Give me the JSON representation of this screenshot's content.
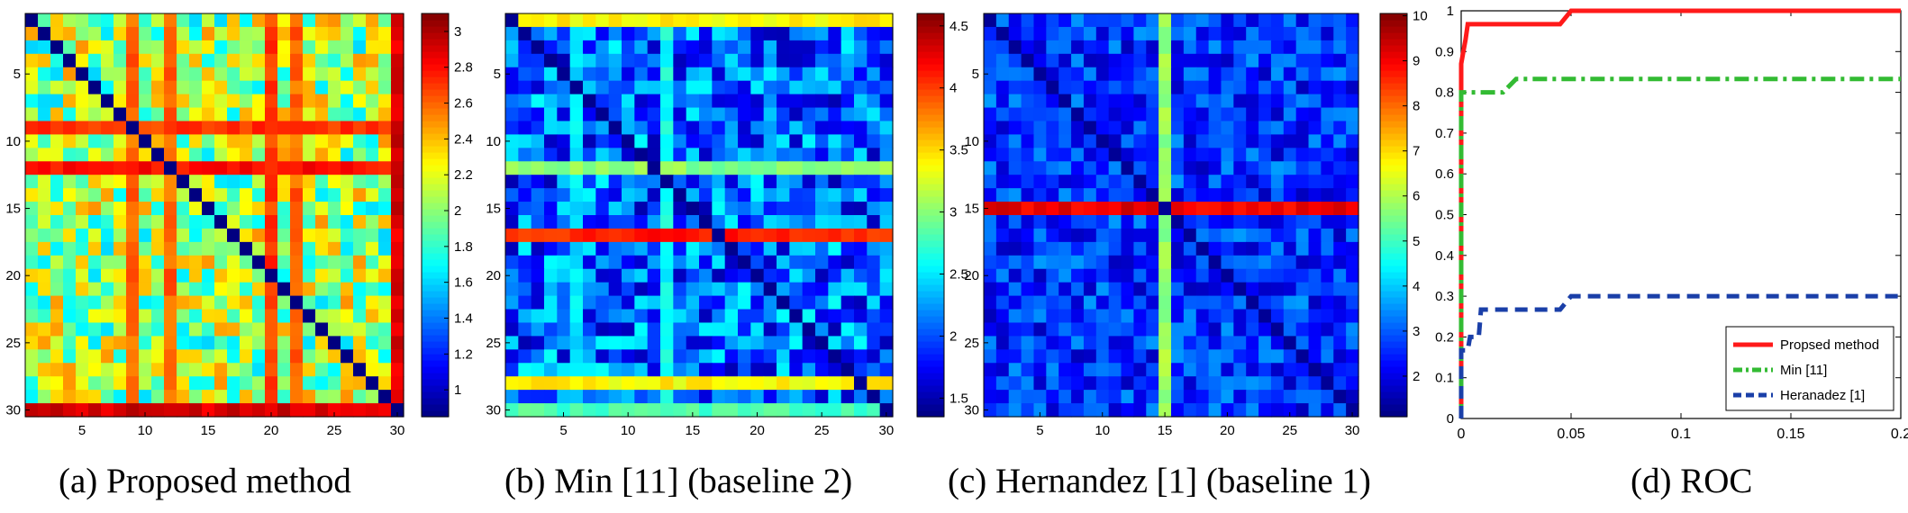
{
  "chart_data": [
    {
      "type": "heatmap",
      "caption": "(a) Proposed method",
      "size": 30,
      "xticks": [
        5,
        10,
        15,
        20,
        25,
        30
      ],
      "yticks": [
        5,
        10,
        15,
        20,
        25,
        30
      ],
      "colorbar": {
        "min": 0.85,
        "max": 3.1,
        "ticks": [
          "1",
          "1.2",
          "1.4",
          "1.6",
          "1.8",
          "2",
          "2.2",
          "2.4",
          "2.6",
          "2.8",
          "3"
        ]
      },
      "diagonal": 0.85,
      "hot_rows": [
        {
          "index": 9,
          "value": 2.7
        },
        {
          "index": 12,
          "value": 2.8
        },
        {
          "index": 30,
          "value": 2.9
        }
      ],
      "hot_cols": [
        {
          "index": 9,
          "value": 2.6
        },
        {
          "index": 12,
          "value": 2.6
        },
        {
          "index": 20,
          "value": 2.7
        },
        {
          "index": 22,
          "value": 2.6
        },
        {
          "index": 30,
          "value": 2.9
        }
      ],
      "background": {
        "min": 1.6,
        "max": 2.5
      }
    },
    {
      "type": "heatmap",
      "caption": "(b) Min [11] (baseline 2)",
      "size": 30,
      "xticks": [
        5,
        10,
        15,
        20,
        25,
        30
      ],
      "yticks": [
        5,
        10,
        15,
        20,
        25,
        30
      ],
      "colorbar": {
        "min": 1.35,
        "max": 4.6,
        "ticks": [
          "1.5",
          "2",
          "2.5",
          "3",
          "3.5",
          "4",
          "4.5"
        ]
      },
      "diagonal": 1.4,
      "hot_rows": [
        {
          "index": 1,
          "value": 3.4
        },
        {
          "index": 12,
          "value": 3.0
        },
        {
          "index": 17,
          "value": 4.1
        },
        {
          "index": 28,
          "value": 3.4
        },
        {
          "index": 30,
          "value": 2.8
        }
      ],
      "hot_cols": [
        {
          "index": 6,
          "value": 2.5
        },
        {
          "index": 13,
          "value": 2.6
        }
      ],
      "background": {
        "min": 1.5,
        "max": 2.6
      }
    },
    {
      "type": "heatmap",
      "caption": "(c) Hernandez [1] (baseline 1)",
      "size": 30,
      "xticks": [
        5,
        10,
        15,
        20,
        25,
        30
      ],
      "yticks": [
        5,
        10,
        15,
        20,
        25,
        30
      ],
      "colorbar": {
        "min": 1.1,
        "max": 10.05,
        "ticks": [
          "2",
          "3",
          "4",
          "5",
          "6",
          "7",
          "8",
          "9",
          "10"
        ]
      },
      "diagonal": 1.3,
      "hot_rows": [
        {
          "index": 15,
          "value": 9.1
        }
      ],
      "hot_cols": [
        {
          "index": 15,
          "value": 5.8
        }
      ],
      "background": {
        "min": 1.6,
        "max": 3.6
      }
    },
    {
      "type": "line",
      "caption": "(d) ROC",
      "xlim": [
        0,
        0.2
      ],
      "ylim": [
        0,
        1
      ],
      "xticks": [
        "0",
        "0.05",
        "0.1",
        "0.15",
        "0.2"
      ],
      "yticks": [
        "0",
        "0.1",
        "0.2",
        "0.3",
        "0.4",
        "0.5",
        "0.6",
        "0.7",
        "0.8",
        "0.9",
        "1"
      ],
      "legend_position": "bottom-right",
      "series": [
        {
          "name": "Propsed method",
          "color": "#ff1a1a",
          "style": "solid",
          "points": [
            [
              0,
              0
            ],
            [
              0,
              0.87
            ],
            [
              0.001,
              0.9
            ],
            [
              0.002,
              0.93
            ],
            [
              0.003,
              0.967
            ],
            [
              0.045,
              0.967
            ],
            [
              0.05,
              1.0
            ],
            [
              0.2,
              1.0
            ]
          ]
        },
        {
          "name": "Min [11]",
          "color": "#33bb33",
          "style": "dashdot",
          "points": [
            [
              0,
              0
            ],
            [
              0,
              0.8
            ],
            [
              0.019,
              0.8
            ],
            [
              0.025,
              0.833
            ],
            [
              0.2,
              0.833
            ]
          ]
        },
        {
          "name": "Heranadez [1]",
          "color": "#1a3fa8",
          "style": "dashed",
          "points": [
            [
              0,
              0
            ],
            [
              0,
              0.167
            ],
            [
              0.003,
              0.167
            ],
            [
              0.004,
              0.2
            ],
            [
              0.008,
              0.2
            ],
            [
              0.009,
              0.267
            ],
            [
              0.045,
              0.267
            ],
            [
              0.05,
              0.3
            ],
            [
              0.2,
              0.3
            ]
          ]
        }
      ]
    }
  ]
}
